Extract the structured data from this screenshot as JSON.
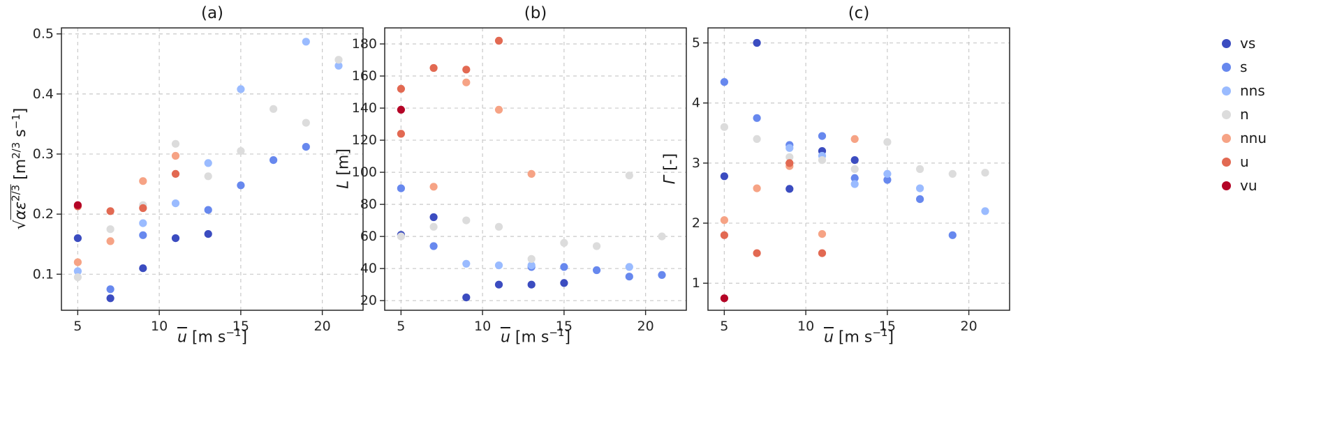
{
  "figure": {
    "type": "three-panel-scatter-figure",
    "background": "#ffffff"
  },
  "palette": {
    "vs": "#3b4cc0",
    "s": "#6788ee",
    "nns": "#9abbff",
    "n": "#dcdcdc",
    "nnu": "#f6a385",
    "u": "#e26952",
    "vu": "#b40426"
  },
  "legend": {
    "position": "right-outside",
    "entries": [
      "vs",
      "s",
      "nns",
      "n",
      "nnu",
      "u",
      "vu"
    ]
  },
  "chart_data": [
    {
      "id": "a",
      "type": "scatter",
      "title": "(a)",
      "xlabel": "ū [m s⁻¹]",
      "xlabel_html": "<i><span class='ovl'>u</span></i> [m s<sup>−1</sup>]",
      "ylabel": "√(αε^(2/3)) [m^(2/3) s^(−1)]",
      "ylabel_html": "<span class='rad'>√</span><span class='ovl2'><i>αε</i><sup>2/3</sup></span> [m<sup>2/3</sup> s<sup>−1</sup>]",
      "xlim": [
        4,
        22.5
      ],
      "ylim": [
        0.04,
        0.51
      ],
      "xticks": [
        5,
        10,
        15,
        20
      ],
      "yticks": [
        0.1,
        0.2,
        0.3,
        0.4,
        0.5
      ],
      "grid": true,
      "series": [
        {
          "name": "vs",
          "points": [
            [
              5,
              0.16
            ],
            [
              7,
              0.06
            ],
            [
              9,
              0.11
            ],
            [
              11,
              0.16
            ],
            [
              13,
              0.167
            ]
          ]
        },
        {
          "name": "s",
          "points": [
            [
              7,
              0.075
            ],
            [
              9,
              0.165
            ],
            [
              13,
              0.207
            ],
            [
              15,
              0.248
            ],
            [
              17,
              0.29
            ],
            [
              19,
              0.312
            ]
          ]
        },
        {
          "name": "nns",
          "points": [
            [
              5,
              0.105
            ],
            [
              9,
              0.185
            ],
            [
              11,
              0.218
            ],
            [
              13,
              0.285
            ],
            [
              15,
              0.408
            ],
            [
              19,
              0.487
            ],
            [
              21,
              0.447
            ]
          ]
        },
        {
          "name": "n",
          "points": [
            [
              5,
              0.095
            ],
            [
              7,
              0.175
            ],
            [
              9,
              0.215
            ],
            [
              11,
              0.317
            ],
            [
              13,
              0.263
            ],
            [
              15,
              0.305
            ],
            [
              17,
              0.375
            ],
            [
              19,
              0.352
            ],
            [
              21,
              0.457
            ]
          ]
        },
        {
          "name": "nnu",
          "points": [
            [
              5,
              0.12
            ],
            [
              7,
              0.155
            ],
            [
              9,
              0.255
            ],
            [
              11,
              0.297
            ]
          ]
        },
        {
          "name": "u",
          "points": [
            [
              5,
              0.213
            ],
            [
              7,
              0.205
            ],
            [
              9,
              0.21
            ],
            [
              11,
              0.267
            ]
          ]
        },
        {
          "name": "vu",
          "points": [
            [
              5,
              0.215
            ]
          ]
        }
      ]
    },
    {
      "id": "b",
      "type": "scatter",
      "title": "(b)",
      "xlabel": "ū [m s⁻¹]",
      "xlabel_html": "<i><span class='ovl'>u</span></i> [m s<sup>−1</sup>]",
      "ylabel": "L [m]",
      "ylabel_html": "<i>L</i> [m]",
      "xlim": [
        4,
        22.5
      ],
      "ylim": [
        14,
        190
      ],
      "xticks": [
        5,
        10,
        15,
        20
      ],
      "yticks": [
        20,
        40,
        60,
        80,
        100,
        120,
        140,
        160,
        180
      ],
      "grid": true,
      "series": [
        {
          "name": "vs",
          "points": [
            [
              5,
              61
            ],
            [
              7,
              72
            ],
            [
              9,
              22
            ],
            [
              11,
              30
            ],
            [
              13,
              30
            ],
            [
              15,
              31
            ]
          ]
        },
        {
          "name": "s",
          "points": [
            [
              5,
              90
            ],
            [
              7,
              54
            ],
            [
              13,
              41
            ],
            [
              15,
              41
            ],
            [
              17,
              39
            ],
            [
              19,
              35
            ],
            [
              21,
              36
            ]
          ]
        },
        {
          "name": "nns",
          "points": [
            [
              9,
              43
            ],
            [
              11,
              42
            ],
            [
              13,
              42
            ],
            [
              19,
              41
            ]
          ]
        },
        {
          "name": "n",
          "points": [
            [
              5,
              60
            ],
            [
              7,
              66
            ],
            [
              9,
              70
            ],
            [
              11,
              66
            ],
            [
              13,
              46
            ],
            [
              15,
              56
            ],
            [
              17,
              54
            ],
            [
              19,
              98
            ],
            [
              21,
              60
            ]
          ]
        },
        {
          "name": "nnu",
          "points": [
            [
              7,
              91
            ],
            [
              9,
              156
            ],
            [
              11,
              139
            ],
            [
              13,
              99
            ]
          ]
        },
        {
          "name": "u",
          "points": [
            [
              5,
              152
            ],
            [
              5,
              124
            ],
            [
              7,
              165
            ],
            [
              9,
              164
            ],
            [
              11,
              182
            ]
          ]
        },
        {
          "name": "vu",
          "points": [
            [
              5,
              139
            ]
          ]
        }
      ]
    },
    {
      "id": "c",
      "type": "scatter",
      "title": "(c)",
      "xlabel": "ū [m s⁻¹]",
      "xlabel_html": "<i><span class='ovl'>u</span></i> [m s<sup>−1</sup>]",
      "ylabel": "Γ [-]",
      "ylabel_html": "<i>Γ</i> [-]",
      "xlim": [
        4,
        22.5
      ],
      "ylim": [
        0.55,
        5.25
      ],
      "xticks": [
        5,
        10,
        15,
        20
      ],
      "yticks": [
        1,
        2,
        3,
        4,
        5
      ],
      "grid": true,
      "series": [
        {
          "name": "vs",
          "points": [
            [
              5,
              2.78
            ],
            [
              7,
              5.0
            ],
            [
              9,
              2.57
            ],
            [
              11,
              3.2
            ],
            [
              13,
              3.05
            ]
          ]
        },
        {
          "name": "s",
          "points": [
            [
              5,
              4.35
            ],
            [
              7,
              3.75
            ],
            [
              9,
              3.3
            ],
            [
              11,
              3.45
            ],
            [
              13,
              2.75
            ],
            [
              15,
              2.72
            ],
            [
              17,
              2.4
            ],
            [
              19,
              1.8
            ]
          ]
        },
        {
          "name": "nns",
          "points": [
            [
              9,
              3.25
            ],
            [
              11,
              3.12
            ],
            [
              13,
              2.65
            ],
            [
              15,
              2.82
            ],
            [
              17,
              2.58
            ],
            [
              21,
              2.2
            ]
          ]
        },
        {
          "name": "n",
          "points": [
            [
              5,
              3.6
            ],
            [
              7,
              3.4
            ],
            [
              9,
              3.1
            ],
            [
              11,
              3.05
            ],
            [
              13,
              2.9
            ],
            [
              15,
              3.35
            ],
            [
              17,
              2.9
            ],
            [
              19,
              2.82
            ],
            [
              21,
              2.84
            ]
          ]
        },
        {
          "name": "nnu",
          "points": [
            [
              5,
              2.05
            ],
            [
              7,
              2.58
            ],
            [
              9,
              2.95
            ],
            [
              11,
              1.82
            ],
            [
              13,
              3.4
            ]
          ]
        },
        {
          "name": "u",
          "points": [
            [
              5,
              1.8
            ],
            [
              7,
              1.5
            ],
            [
              9,
              3.0
            ],
            [
              11,
              1.5
            ]
          ]
        },
        {
          "name": "vu",
          "points": [
            [
              5,
              0.75
            ]
          ]
        }
      ]
    }
  ]
}
